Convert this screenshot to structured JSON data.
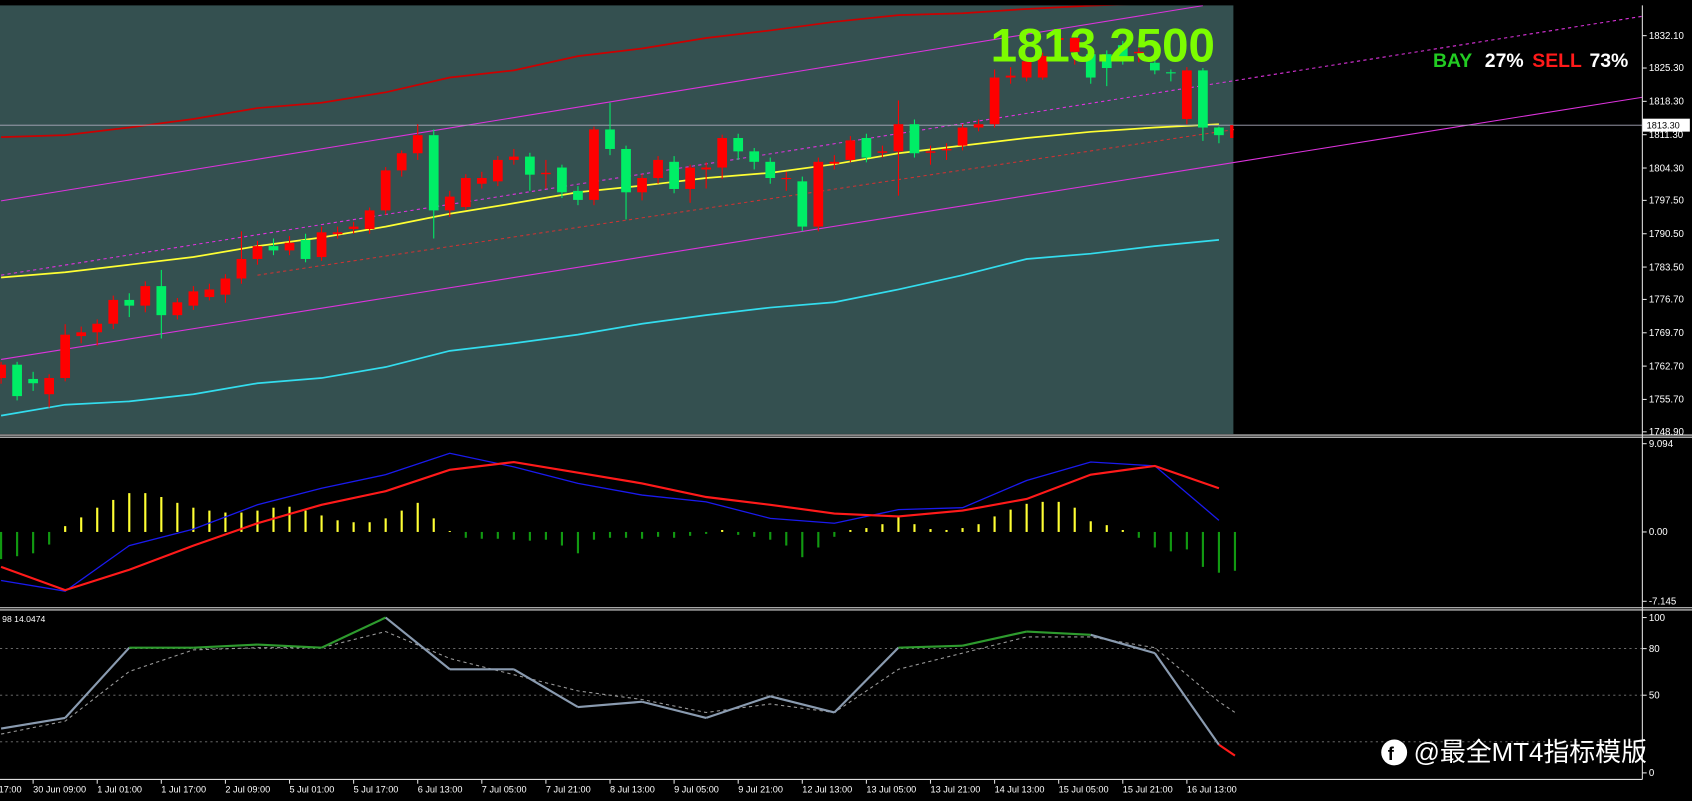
{
  "chart_data": {
    "type": "candlestick",
    "price_text": "1813.2500",
    "bay_label": "BAY",
    "bay_pct": "27%",
    "sell_label": "SELL",
    "sell_pct": "73%",
    "first_label": "17:00",
    "categories": [
      null,
      null,
      "30 Jun 09:00",
      null,
      null,
      null,
      "1 Jul 01:00",
      null,
      null,
      null,
      "1 Jul 17:00",
      null,
      null,
      null,
      "2 Jul 09:00",
      null,
      null,
      null,
      "5 Jul 01:00",
      null,
      null,
      null,
      "5 Jul 17:00",
      null,
      null,
      null,
      "6 Jul 13:00",
      null,
      null,
      null,
      "7 Jul 05:00",
      null,
      null,
      null,
      "7 Jul 21:00",
      null,
      null,
      null,
      "8 Jul 13:00",
      null,
      null,
      null,
      "9 Jul 05:00",
      null,
      null,
      null,
      "9 Jul 21:00",
      null,
      null,
      null,
      "12 Jul 13:00",
      null,
      null,
      null,
      "13 Jul 05:00",
      null,
      null,
      null,
      "13 Jul 21:00",
      null,
      null,
      null,
      "14 Jul 13:00",
      null,
      null,
      null,
      "15 Jul 05:00",
      null,
      null,
      null,
      "15 Jul 21:00",
      null,
      null,
      null,
      "16 Jul 13:00",
      null,
      null,
      null
    ],
    "ohlc": [
      [
        1760.2,
        1763.6,
        1759.0,
        1763.0
      ],
      [
        1763.0,
        1763.6,
        1755.5,
        1756.4
      ],
      [
        1760.0,
        1761.5,
        1757.5,
        1759.1
      ],
      [
        1756.8,
        1761.0,
        1754.0,
        1760.2
      ],
      [
        1760.2,
        1771.5,
        1759.5,
        1769.3
      ],
      [
        1769.0,
        1771.0,
        1767.5,
        1769.8
      ],
      [
        1769.8,
        1772.5,
        1767.0,
        1771.6
      ],
      [
        1771.6,
        1777.5,
        1770.5,
        1776.6
      ],
      [
        1776.6,
        1778.0,
        1773.0,
        1775.4
      ],
      [
        1775.4,
        1780.5,
        1774.0,
        1779.5
      ],
      [
        1779.5,
        1782.9,
        1768.5,
        1773.4
      ],
      [
        1773.4,
        1777.0,
        1772.5,
        1776.1
      ],
      [
        1775.4,
        1779.5,
        1774.5,
        1778.4
      ],
      [
        1777.2,
        1780.0,
        1776.5,
        1778.8
      ],
      [
        1777.7,
        1782.0,
        1776.0,
        1781.1
      ],
      [
        1781.1,
        1791.0,
        1780.0,
        1785.2
      ],
      [
        1785.2,
        1789.0,
        1784.0,
        1787.9
      ],
      [
        1787.9,
        1789.5,
        1786.0,
        1787.0
      ],
      [
        1787.0,
        1790.0,
        1786.0,
        1788.6
      ],
      [
        1789.2,
        1790.5,
        1784.5,
        1785.2
      ],
      [
        1785.6,
        1792.0,
        1784.8,
        1790.8
      ],
      [
        1790.4,
        1792.0,
        1789.5,
        1790.8
      ],
      [
        1791.5,
        1793.0,
        1790.5,
        1792.0
      ],
      [
        1791.5,
        1796.0,
        1790.5,
        1795.4
      ],
      [
        1795.4,
        1804.5,
        1794.5,
        1803.8
      ],
      [
        1803.8,
        1808.0,
        1802.5,
        1807.4
      ],
      [
        1807.4,
        1813.5,
        1806.0,
        1811.2
      ],
      [
        1811.2,
        1812.4,
        1789.5,
        1795.4
      ],
      [
        1795.4,
        1799.5,
        1794.0,
        1798.3
      ],
      [
        1796.1,
        1803.0,
        1795.5,
        1802.2
      ],
      [
        1801.0,
        1803.5,
        1800.0,
        1802.2
      ],
      [
        1801.5,
        1806.8,
        1800.5,
        1806.0
      ],
      [
        1806.0,
        1808.3,
        1805.0,
        1806.7
      ],
      [
        1806.7,
        1807.5,
        1799.5,
        1802.9
      ],
      [
        1803.0,
        1806.0,
        1800.0,
        1803.3
      ],
      [
        1804.4,
        1805.0,
        1798.0,
        1799.2
      ],
      [
        1799.5,
        1800.5,
        1796.5,
        1797.6
      ],
      [
        1797.6,
        1813.0,
        1796.5,
        1812.4
      ],
      [
        1812.4,
        1818.0,
        1807.0,
        1808.3
      ],
      [
        1808.3,
        1809.0,
        1793.5,
        1799.2
      ],
      [
        1799.2,
        1803.0,
        1797.5,
        1802.2
      ],
      [
        1802.2,
        1806.8,
        1801.0,
        1806.0
      ],
      [
        1805.6,
        1806.8,
        1799.0,
        1799.9
      ],
      [
        1799.9,
        1805.0,
        1797.0,
        1804.4
      ],
      [
        1804.0,
        1805.5,
        1800.0,
        1804.4
      ],
      [
        1804.4,
        1811.3,
        1802.0,
        1810.6
      ],
      [
        1810.6,
        1811.5,
        1806.0,
        1807.8
      ],
      [
        1807.8,
        1808.5,
        1804.0,
        1805.6
      ],
      [
        1805.6,
        1806.5,
        1801.0,
        1802.2
      ],
      [
        1802.0,
        1803.5,
        1799.5,
        1802.2
      ],
      [
        1801.5,
        1802.5,
        1791.0,
        1792.0
      ],
      [
        1792.0,
        1806.5,
        1791.0,
        1805.6
      ],
      [
        1805.2,
        1807.0,
        1804.0,
        1805.6
      ],
      [
        1806.0,
        1811.0,
        1805.5,
        1810.1
      ],
      [
        1810.6,
        1811.5,
        1805.5,
        1806.5
      ],
      [
        1807.5,
        1809.0,
        1806.5,
        1807.8
      ],
      [
        1807.8,
        1818.5,
        1798.5,
        1813.5
      ],
      [
        1813.5,
        1814.5,
        1806.5,
        1807.4
      ],
      [
        1807.5,
        1809.0,
        1805.0,
        1807.8
      ],
      [
        1808.0,
        1809.5,
        1806.0,
        1808.3
      ],
      [
        1809.0,
        1813.5,
        1808.0,
        1812.8
      ],
      [
        1812.8,
        1814.5,
        1812.0,
        1813.5
      ],
      [
        1813.5,
        1825.0,
        1812.8,
        1823.3
      ],
      [
        1823.3,
        1825.5,
        1822.0,
        1823.7
      ],
      [
        1823.3,
        1827.5,
        1822.5,
        1826.7
      ],
      [
        1823.3,
        1828.5,
        1822.8,
        1827.8
      ],
      [
        1831.2,
        1833.5,
        1828.5,
        1831.6
      ],
      [
        1828.7,
        1832.5,
        1826.0,
        1831.6
      ],
      [
        1828.2,
        1829.0,
        1822.0,
        1823.3
      ],
      [
        1828.2,
        1829.0,
        1821.5,
        1825.3
      ],
      [
        1830.1,
        1831.0,
        1826.0,
        1827.1
      ],
      [
        1828.4,
        1829.5,
        1826.5,
        1828.7
      ],
      [
        1826.4,
        1827.0,
        1824.0,
        1824.8
      ],
      [
        1824.4,
        1825.0,
        1822.5,
        1824.2
      ],
      [
        1814.6,
        1825.5,
        1813.5,
        1824.8
      ],
      [
        1824.8,
        1825.3,
        1810.0,
        1812.8
      ],
      [
        1812.8,
        1813.0,
        1809.5,
        1811.2
      ],
      [
        1810.6,
        1814.0,
        1809.5,
        1813.3
      ]
    ],
    "up_color": "#ff0000",
    "down_color": "#00ee66",
    "ylim": [
      1748.45,
      1838.45
    ],
    "yticks": [
      {
        "value": 1748.9,
        "label": "1748.90"
      },
      {
        "value": 1755.7,
        "label": "1755.70"
      },
      {
        "value": 1762.7,
        "label": "1762.70"
      },
      {
        "value": 1769.7,
        "label": "1769.70"
      },
      {
        "value": 1776.7,
        "label": "1776.70"
      },
      {
        "value": 1783.5,
        "label": "1783.50"
      },
      {
        "value": 1790.5,
        "label": "1790.50"
      },
      {
        "value": 1797.5,
        "label": "1797.50"
      },
      {
        "value": 1804.3,
        "label": "1804.30"
      },
      {
        "value": 1811.3,
        "label": "1811.30"
      },
      {
        "value": 1818.3,
        "label": "1818.30"
      },
      {
        "value": 1825.3,
        "label": "1825.30"
      },
      {
        "value": 1832.1,
        "label": "1832.10"
      }
    ],
    "current_price": {
      "value": 1813.3,
      "label": "1813.30"
    },
    "bands": {
      "x": [
        0,
        4,
        8,
        12,
        16,
        20,
        24,
        28,
        32,
        36,
        40,
        44,
        48,
        52,
        56,
        60,
        64,
        68,
        72,
        76
      ],
      "series": [
        {
          "color": "#cc0000",
          "values": [
            1810.8,
            1811.2,
            1812.8,
            1814.6,
            1816.9,
            1818.0,
            1820.2,
            1823.3,
            1824.8,
            1827.8,
            1829.4,
            1831.6,
            1833.2,
            1835.0,
            1836.4,
            1836.8,
            1837.7,
            1838.4,
            1838.9,
            1839.3
          ]
        },
        {
          "color": "#ffff33",
          "values": [
            1781.3,
            1782.4,
            1784.0,
            1785.6,
            1787.9,
            1789.7,
            1792.0,
            1794.7,
            1796.9,
            1799.2,
            1800.6,
            1802.2,
            1803.3,
            1805.1,
            1807.4,
            1809.0,
            1810.6,
            1811.9,
            1812.8,
            1813.5
          ]
        },
        {
          "color": "#33ddee",
          "values": [
            1752.3,
            1754.6,
            1755.3,
            1756.8,
            1759.1,
            1760.2,
            1762.5,
            1765.9,
            1767.5,
            1769.3,
            1771.6,
            1773.4,
            1775.0,
            1776.1,
            1778.8,
            1781.8,
            1785.2,
            1786.3,
            1787.9,
            1789.2
          ]
        }
      ]
    },
    "trend_lines": [
      {
        "color": "#dd33dd",
        "dashed": false,
        "start": [
          0,
          1764.1
        ],
        "end": [
          102.5,
          1819.2
        ]
      },
      {
        "color": "#dd33dd",
        "dashed": false,
        "start": [
          0,
          1797.4
        ],
        "end": [
          75,
          1838.4
        ]
      },
      {
        "color": "#dd33dd",
        "dashed": true,
        "start": [
          0,
          1781.8
        ],
        "end": [
          102.5,
          1836.2
        ]
      },
      {
        "color": "#cc3333",
        "dashed": true,
        "start": [
          16,
          1781.8
        ],
        "end": [
          77,
          1812.4
        ]
      }
    ],
    "macd": {
      "ylim": [
        -7.7,
        9.65
      ],
      "yticks": [
        -7.145,
        {
          "value": 0,
          "label": "0.00"
        },
        9.094
      ],
      "up_color": "#ffff33",
      "down_color": "#119911",
      "histogram": [
        -2.8,
        -2.5,
        -2.2,
        -1.3,
        0.6,
        1.5,
        2.5,
        3.3,
        4.0,
        4.0,
        3.6,
        3.0,
        2.5,
        2.2,
        2.0,
        2.0,
        2.2,
        2.5,
        2.6,
        2.2,
        1.7,
        1.2,
        1.0,
        1.0,
        1.4,
        2.2,
        3.0,
        1.4,
        0.1,
        -0.6,
        -0.7,
        -0.7,
        -0.8,
        -0.9,
        -0.8,
        -1.4,
        -2.2,
        -0.8,
        -0.6,
        -0.6,
        -0.7,
        -0.5,
        -0.6,
        -0.4,
        -0.2,
        0.2,
        -0.3,
        -0.5,
        -0.8,
        -1.4,
        -2.6,
        -1.6,
        -0.5,
        0.2,
        0.4,
        0.8,
        1.6,
        0.8,
        0.3,
        0.2,
        0.4,
        0.8,
        1.6,
        2.3,
        2.9,
        3.1,
        3.1,
        2.5,
        1.1,
        0.7,
        0.2,
        -0.6,
        -1.6,
        -2.0,
        -1.8,
        -3.6,
        -4.2,
        -4.0
      ],
      "x": [
        0,
        4,
        8,
        12,
        16,
        20,
        24,
        28,
        32,
        36,
        40,
        44,
        48,
        52,
        56,
        60,
        64,
        68,
        72,
        76
      ],
      "lines": [
        {
          "color": "#1a1aee",
          "values": [
            -5.0,
            -6.1,
            -1.4,
            0.3,
            2.8,
            4.5,
            5.9,
            8.1,
            6.7,
            5.0,
            3.8,
            3.1,
            1.4,
            0.9,
            2.3,
            2.5,
            5.3,
            7.2,
            6.8,
            1.2
          ]
        },
        {
          "color": "#ff1a1a",
          "values": [
            -3.6,
            -6.0,
            -3.9,
            -1.4,
            0.9,
            2.8,
            4.2,
            6.4,
            7.2,
            6.1,
            5.0,
            3.6,
            2.8,
            1.9,
            1.6,
            2.2,
            3.4,
            5.9,
            6.8,
            4.5
          ]
        }
      ]
    },
    "stochastic": {
      "label": "98 14.0474",
      "ylim": [
        -4.2,
        104.9
      ],
      "yticks": [
        100,
        80,
        50,
        0
      ],
      "levels": [
        80,
        50,
        20
      ],
      "x": [
        0,
        4,
        8,
        12,
        16,
        20,
        24,
        28,
        32,
        36,
        40,
        44,
        48,
        52,
        56,
        60,
        64,
        68,
        72,
        76,
        77
      ],
      "main": {
        "color": "#8a9bb0",
        "values": [
          28.5,
          35.4,
          80.6,
          80.6,
          82.6,
          80.6,
          100,
          66.7,
          66.7,
          42.4,
          45.8,
          35.4,
          49.3,
          38.9,
          80.6,
          81.9,
          91,
          88.9,
          77.1,
          18.1,
          11.1
        ]
      },
      "signal": {
        "color": "#999999",
        "values": [
          25,
          33.3,
          65.3,
          79.2,
          80.6,
          80.6,
          91,
          73.6,
          63.2,
          52.8,
          47.2,
          38.9,
          44.4,
          38.9,
          66.7,
          77.1,
          87.5,
          87.5,
          80.6,
          45.8,
          38.9
        ]
      },
      "high_color": "#2e9b2e",
      "low_color": "#ff1a1a"
    },
    "watermark": "@最全MT4指标模版"
  }
}
